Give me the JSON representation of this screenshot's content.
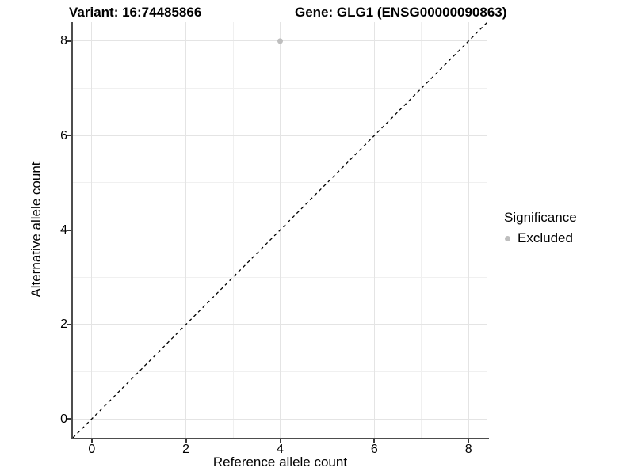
{
  "figure": {
    "title_variant": "Variant: 16:74485866",
    "title_gene": "Gene: GLG1 (ENSG00000090863)"
  },
  "chart_data": {
    "type": "scatter",
    "titles": [
      "Variant: 16:74485866",
      "Gene: GLG1 (ENSG00000090863)"
    ],
    "xlabel": "Reference allele count",
    "ylabel": "Alternative allele count",
    "xlim": [
      -0.4,
      8.4
    ],
    "ylim": [
      -0.4,
      8.4
    ],
    "x_ticks": [
      0,
      2,
      4,
      6,
      8
    ],
    "y_ticks": [
      0,
      2,
      4,
      6,
      8
    ],
    "x_minor_grid": [
      1,
      3,
      5,
      7
    ],
    "y_minor_grid": [
      1,
      3,
      5,
      7
    ],
    "grid": "on",
    "legend_position": "right",
    "series": [
      {
        "name": "Excluded",
        "color": "#bebebe",
        "points": [
          {
            "x": 4,
            "y": 8
          }
        ]
      }
    ],
    "identity_line": {
      "style": "dashed",
      "color": "#000000",
      "from": [
        -0.4,
        -0.4
      ],
      "to": [
        8.4,
        8.4
      ]
    },
    "legend": {
      "title": "Significance",
      "entries": [
        {
          "label": "Excluded",
          "color": "#bebebe"
        }
      ]
    }
  },
  "colors": {
    "background": "#ffffff",
    "grid_major": "#e4e4e4",
    "grid_minor": "#f0f0f0",
    "axis": "#4d4d4d",
    "text": "#000000",
    "point": "#bebebe",
    "identity_line": "#000000"
  }
}
